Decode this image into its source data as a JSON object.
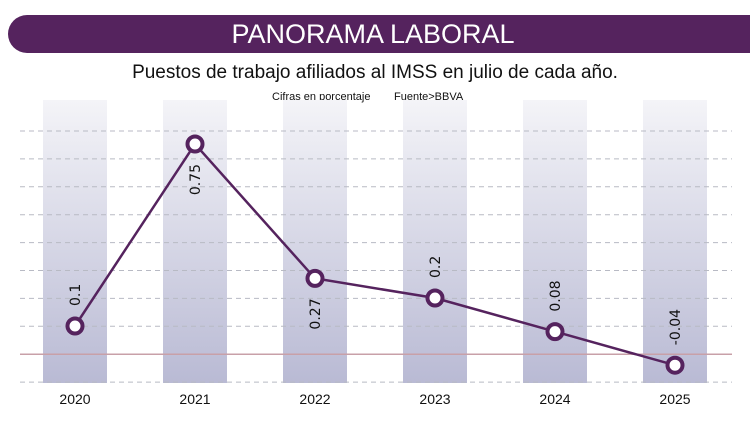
{
  "header": {
    "title": "PANORAMA LABORAL"
  },
  "chart_data": {
    "type": "line",
    "title": "Puestos de trabajo afiliados al IMSS en julio de cada año.",
    "note": "Cifras en porcentaje",
    "source": "Fuente>BBVA",
    "categories": [
      "2020",
      "2021",
      "2022",
      "2023",
      "2024",
      "2025"
    ],
    "values": [
      0.1,
      0.75,
      0.27,
      0.2,
      0.08,
      -0.04
    ],
    "value_labels": [
      "0.1",
      "0.75",
      "0.27",
      "0.2",
      "0.08",
      "-0.04"
    ],
    "label_side": [
      "above",
      "below",
      "below",
      "above",
      "above",
      "above"
    ],
    "grid": true,
    "colors": {
      "line": "#55235e",
      "banner": "#55235e",
      "zero_line": "#c8a0a8",
      "bars": "#c5c6dc",
      "grid": "#b8bac4"
    }
  }
}
